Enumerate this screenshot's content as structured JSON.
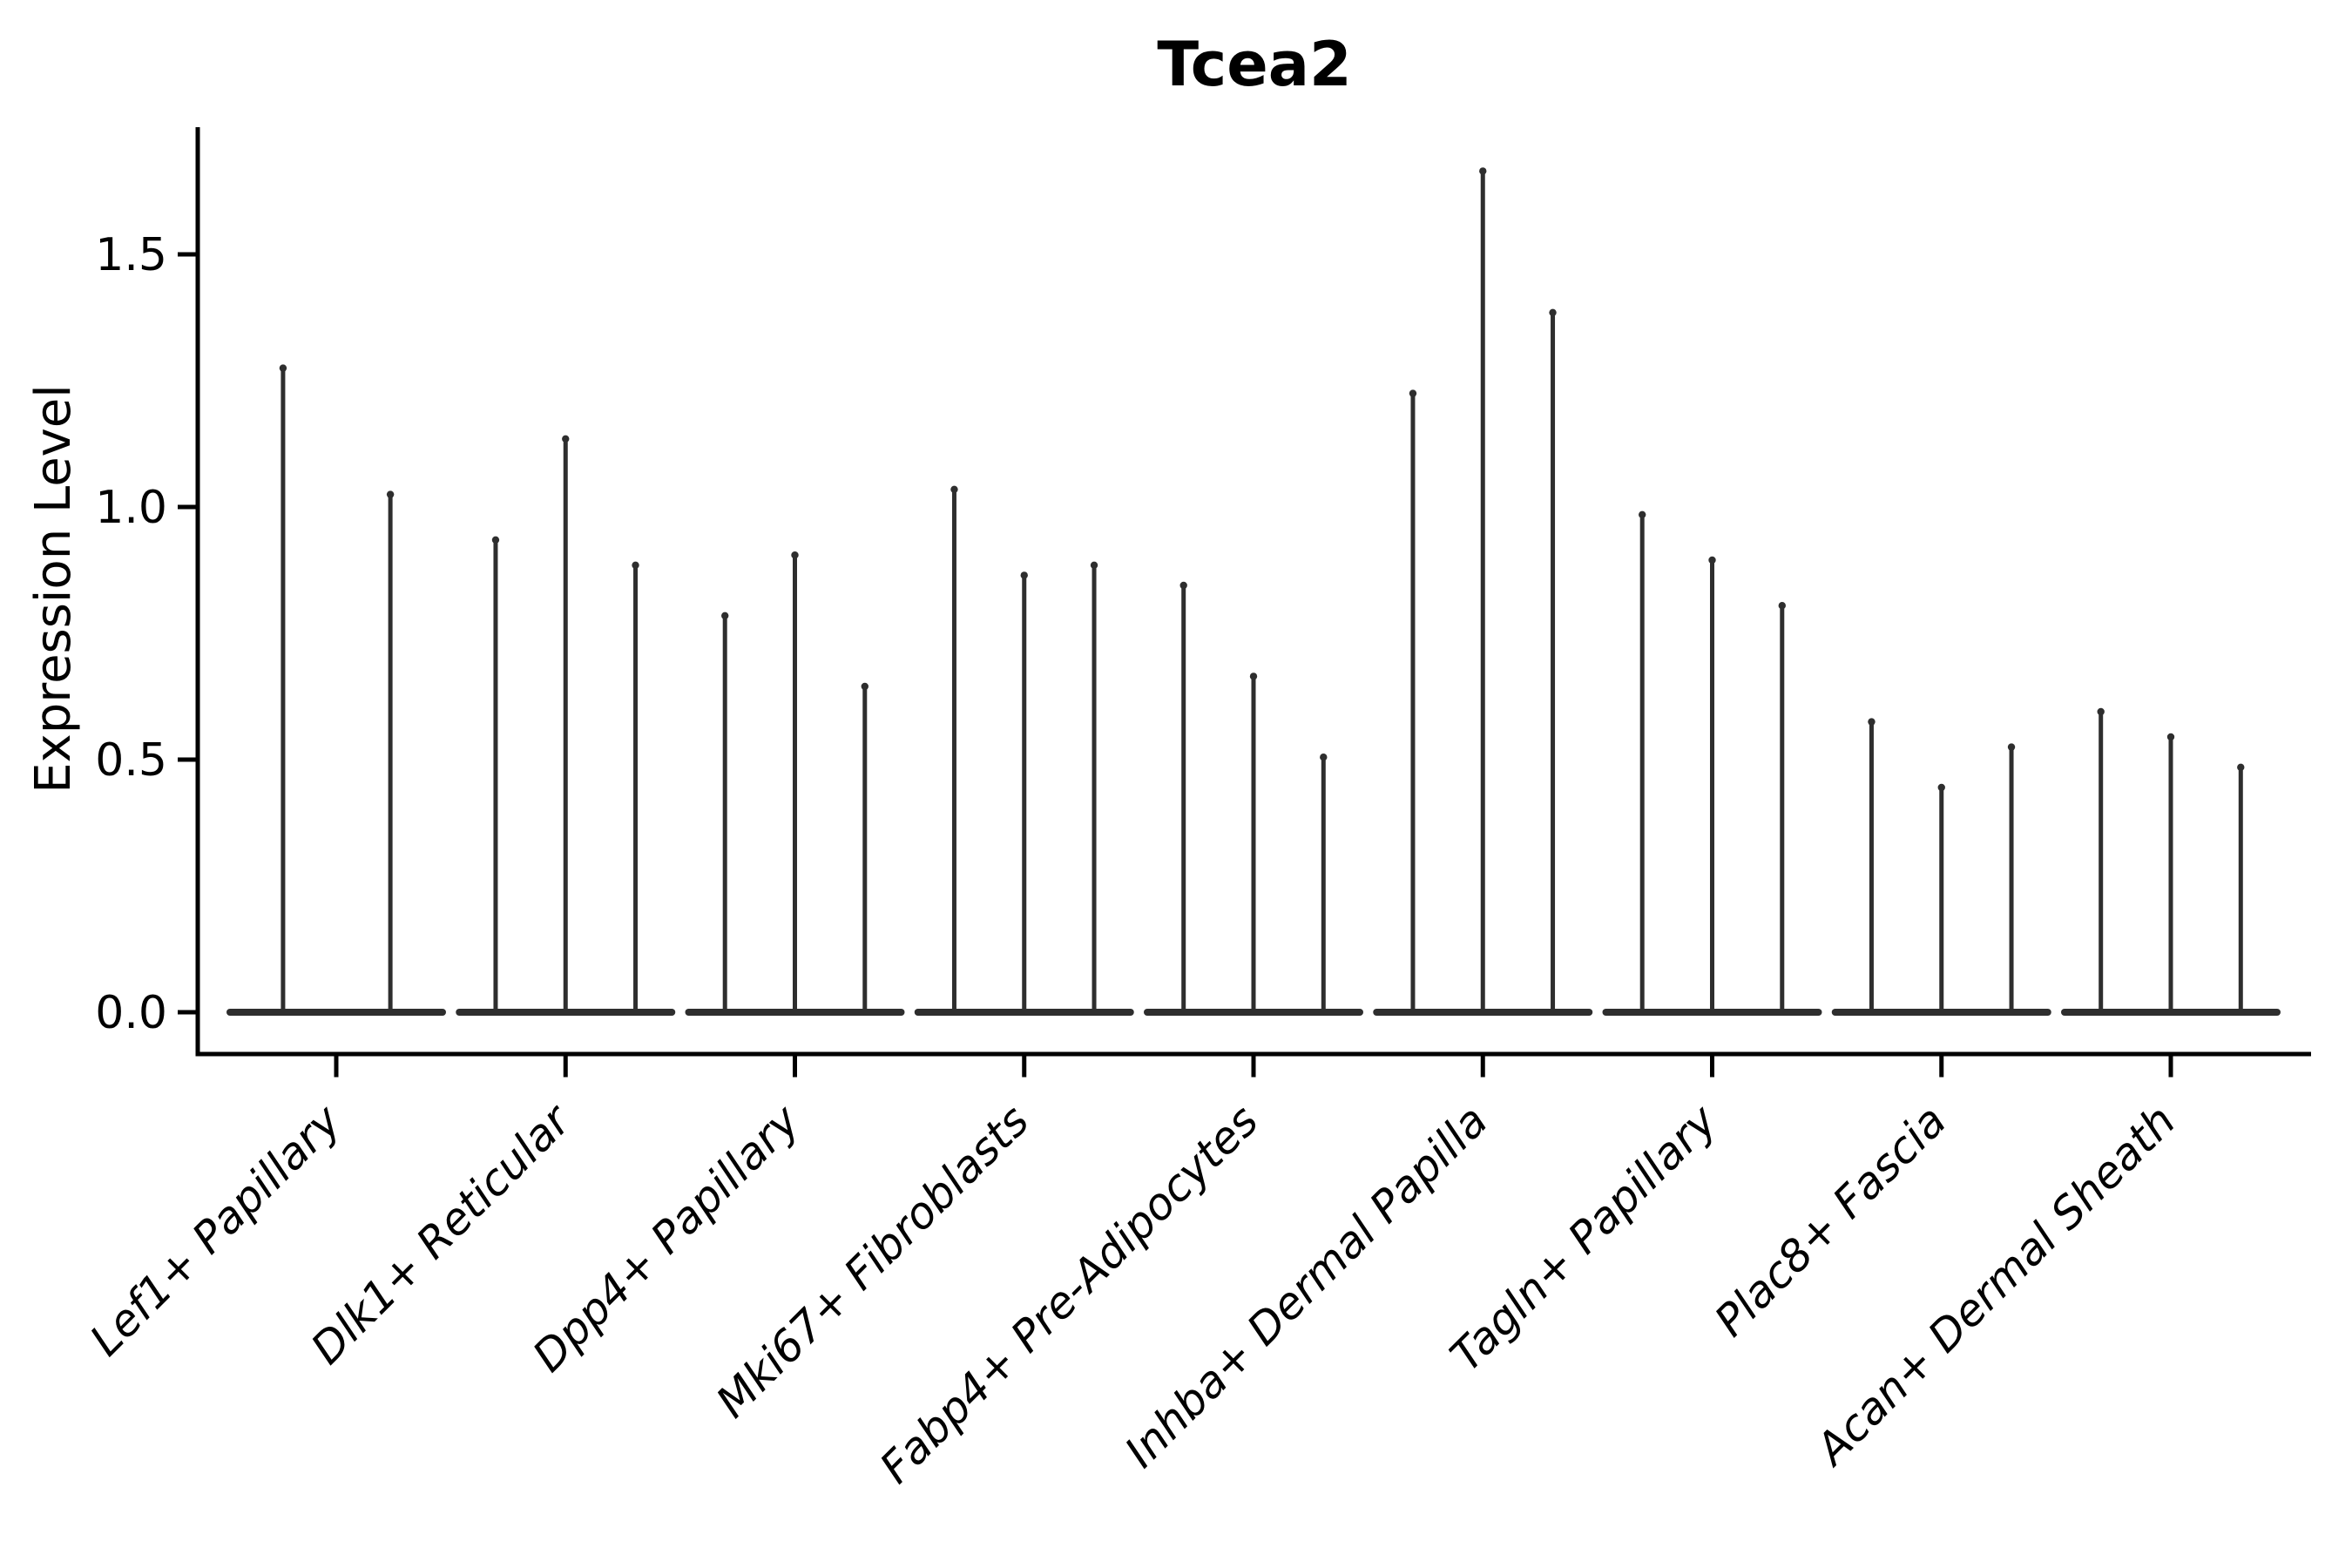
{
  "title": "Tcea2",
  "chart_data": {
    "type": "violin",
    "title": "Tcea2",
    "xlabel": "",
    "ylabel": "Expression Level",
    "ylim": [
      -0.09,
      1.76
    ],
    "yticks": [
      0.0,
      0.5,
      1.0,
      1.5
    ],
    "ytick_labels": [
      "0.0",
      "0.5",
      "1.0",
      "1.5"
    ],
    "grid": false,
    "legend_position": "none",
    "description": "Violin plot of Tcea2 expression per fibroblast subtype; violins are extremely thin spikes (bulk of cells at 0 expression) with flat bases at y=0; 2-3 sub-violins per category",
    "categories": [
      "Lef1+ Papillary",
      "Dlk1+ Reticular",
      "Dpp4+ Papillary",
      "Mki67+ Fibroblasts",
      "Fabp4+ Pre-Adipocytes",
      "Inhba+ Dermal Papilla",
      "Tagln+ Papillary",
      "Plac8+ Fascia",
      "Acan+ Dermal Sheath"
    ],
    "violins": [
      {
        "category": "Lef1+ Papillary",
        "offsets": [
          -0.232,
          0.236
        ],
        "maxima": [
          1.28,
          1.03
        ]
      },
      {
        "category": "Dlk1+ Reticular",
        "offsets": [
          -0.305,
          0,
          0.305
        ],
        "maxima": [
          0.94,
          1.14,
          0.89
        ]
      },
      {
        "category": "Dpp4+ Papillary",
        "offsets": [
          -0.305,
          0,
          0.305
        ],
        "maxima": [
          0.79,
          0.91,
          0.65
        ]
      },
      {
        "category": "Mki67+ Fibroblasts",
        "offsets": [
          -0.305,
          0,
          0.305
        ],
        "maxima": [
          1.04,
          0.87,
          0.89
        ]
      },
      {
        "category": "Fabp4+ Pre-Adipocytes",
        "offsets": [
          -0.305,
          0,
          0.305
        ],
        "maxima": [
          0.85,
          0.67,
          0.51
        ]
      },
      {
        "category": "Inhba+ Dermal Papilla",
        "offsets": [
          -0.305,
          0,
          0.305
        ],
        "maxima": [
          1.23,
          1.67,
          1.39
        ]
      },
      {
        "category": "Tagln+ Papillary",
        "offsets": [
          -0.305,
          0,
          0.305
        ],
        "maxima": [
          0.99,
          0.9,
          0.81
        ]
      },
      {
        "category": "Plac8+ Fascia",
        "offsets": [
          -0.305,
          0,
          0.305
        ],
        "maxima": [
          0.58,
          0.45,
          0.53
        ]
      },
      {
        "category": "Acan+ Dermal Sheath",
        "offsets": [
          -0.305,
          0,
          0.305
        ],
        "maxima": [
          0.6,
          0.55,
          0.49
        ]
      }
    ]
  },
  "colors": {
    "violin": "#2e2e2e",
    "axis": "#000000",
    "text": "#000000",
    "background": "#ffffff"
  }
}
